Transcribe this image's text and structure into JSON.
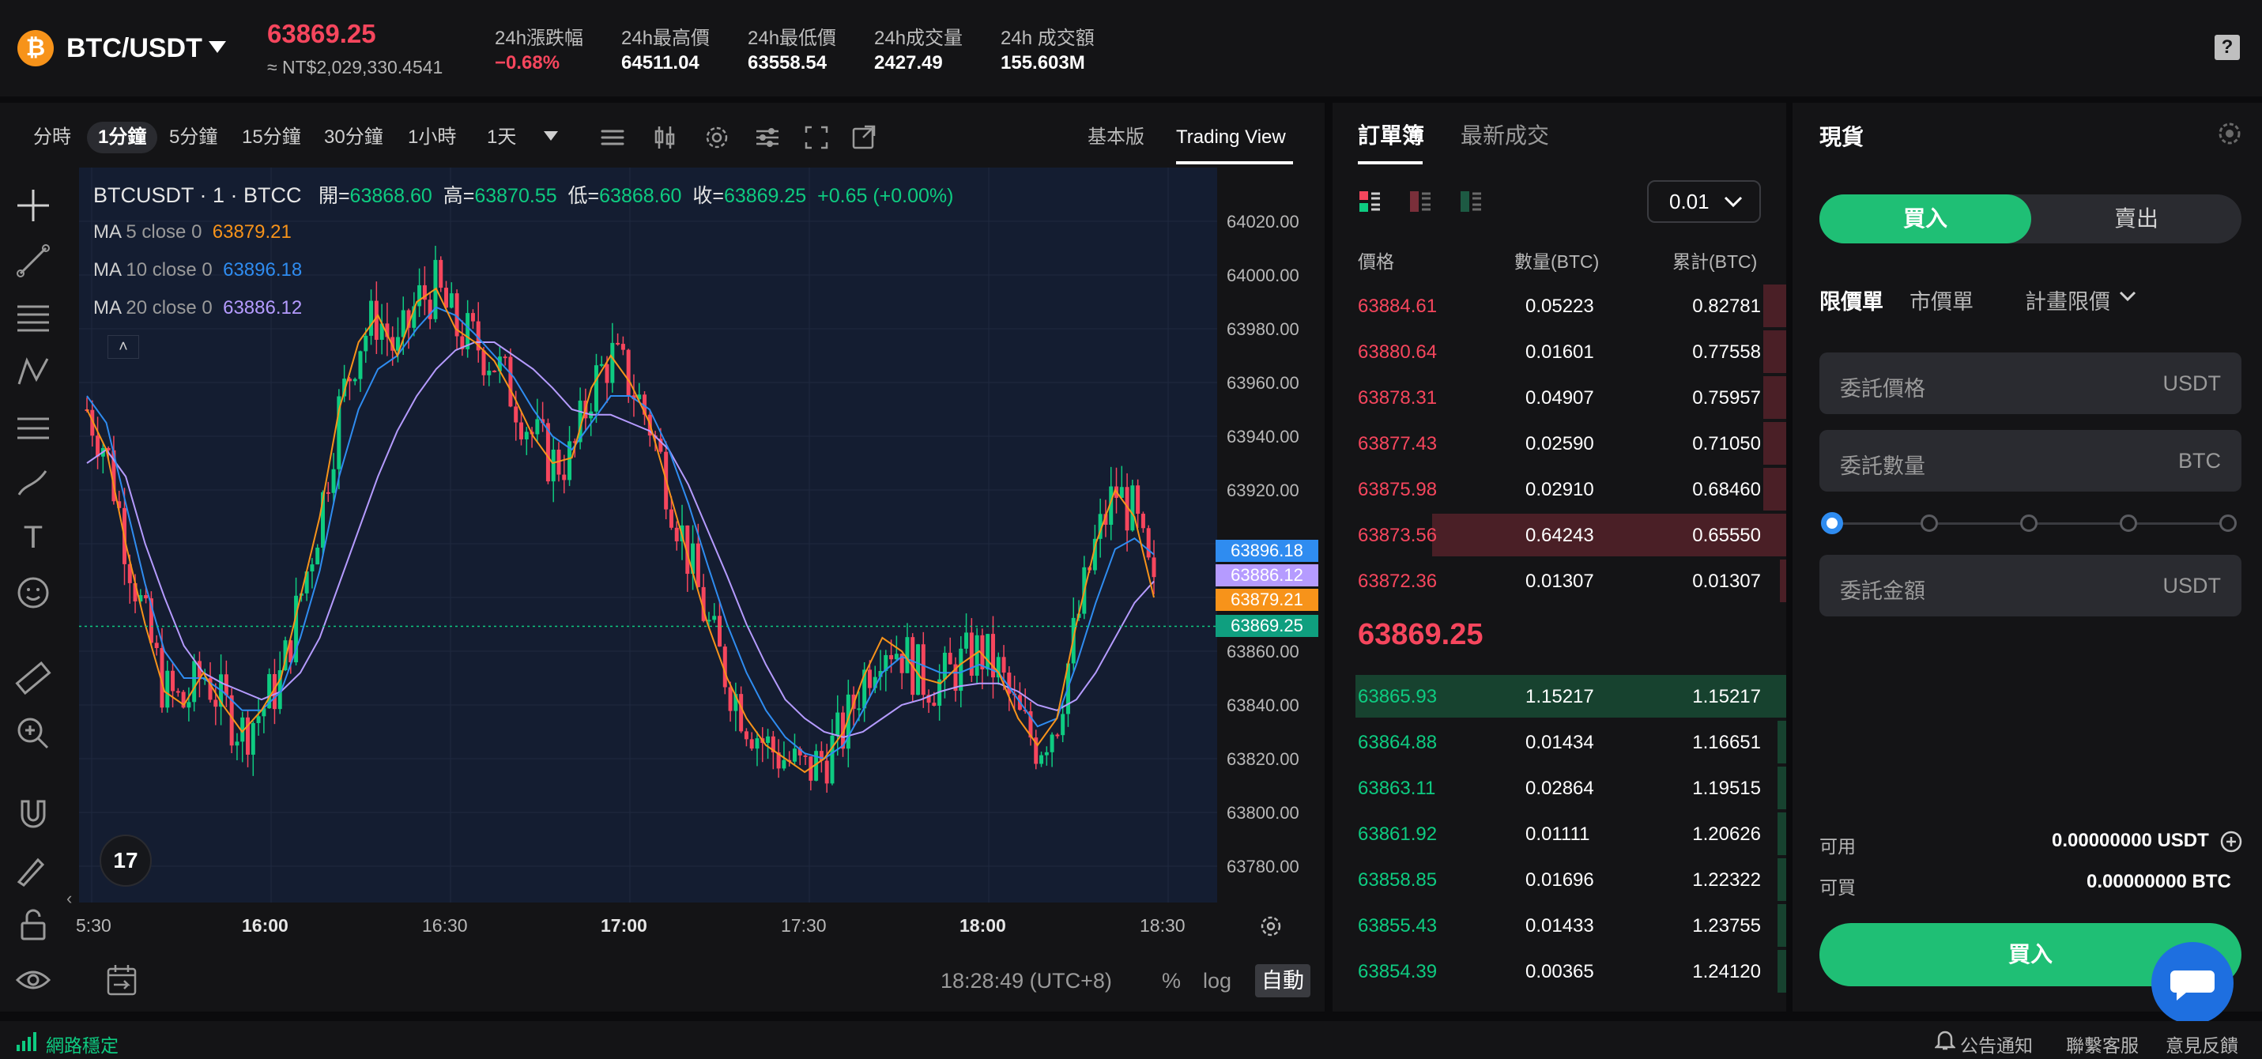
{
  "header": {
    "coin_symbol": "₿",
    "pair": "BTC/USDT",
    "last_price": "63869.25",
    "nt_price": "≈ NT$2,029,330.4541",
    "stats": [
      {
        "label": "24h漲跌幅",
        "value": "−0.68%"
      },
      {
        "label": "24h最高價",
        "value": "64511.04"
      },
      {
        "label": "24h最低價",
        "value": "63558.54"
      },
      {
        "label": "24h成交量",
        "value": "2427.49"
      },
      {
        "label": "24h 成交額",
        "value": "155.603M"
      }
    ],
    "help": "?"
  },
  "chart_toolbar": {
    "timeframes": [
      "分時",
      "1分鐘",
      "5分鐘",
      "15分鐘",
      "30分鐘",
      "1小時",
      "1天"
    ],
    "active_timeframe": "1分鐘",
    "versions": [
      "基本版",
      "Trading View"
    ],
    "active_version": "Trading View"
  },
  "chart": {
    "legend_main_symbol": "BTCUSDT · 1 · BTCC",
    "ohlc": [
      {
        "k": "開=",
        "v": "63868.60"
      },
      {
        "k": "高=",
        "v": "63870.55"
      },
      {
        "k": "低=",
        "v": "63868.60"
      },
      {
        "k": "收=",
        "v": "63869.25"
      }
    ],
    "change": "+0.65 (+0.00%)",
    "ma": [
      {
        "label": "MA",
        "params": "5 close 0",
        "value": "63879.21",
        "color": "#f7931a"
      },
      {
        "label": "MA",
        "params": "10 close 0",
        "value": "63896.18",
        "color": "#2f8cf0"
      },
      {
        "label": "MA",
        "params": "20 close 0",
        "value": "63886.12",
        "color": "#b59bff"
      }
    ],
    "price_tags": [
      {
        "value": "63896.18",
        "color": "#2f8cf0"
      },
      {
        "value": "63886.12",
        "color": "#b59bff"
      },
      {
        "value": "63879.21",
        "color": "#f7931a"
      },
      {
        "value": "63869.25",
        "color": "#0f9f7f"
      }
    ],
    "time": "18:28:49 (UTC+8)",
    "scale_options": [
      "%",
      "log",
      "自動"
    ],
    "active_scale": "自動",
    "tv_logo": "17"
  },
  "chart_data": {
    "type": "candlestick",
    "title": "",
    "y_ticks": [
      "64020.00",
      "64000.00",
      "63980.00",
      "63960.00",
      "63940.00",
      "63920.00",
      "63860.00",
      "63840.00",
      "63820.00",
      "63800.00",
      "63780.00"
    ],
    "ylim": [
      63770,
      64030
    ],
    "x_ticks": [
      "5:30",
      "16:00",
      "16:30",
      "17:00",
      "17:30",
      "18:00",
      "18:30"
    ],
    "bold_x_ticks": [
      "16:00",
      "17:00",
      "18:00"
    ],
    "ma5": [
      63950,
      63935,
      63900,
      63870,
      63845,
      63840,
      63852,
      63840,
      63830,
      63838,
      63850,
      63880,
      63910,
      63950,
      63975,
      63985,
      63970,
      63990,
      63995,
      63980,
      63975,
      63968,
      63955,
      63940,
      63930,
      63932,
      63958,
      63970,
      63960,
      63945,
      63920,
      63895,
      63870,
      63850,
      63835,
      63825,
      63820,
      63815,
      63820,
      63830,
      63850,
      63865,
      63860,
      63850,
      63848,
      63855,
      63860,
      63852,
      63835,
      63825,
      63835,
      63870,
      63900,
      63920,
      63910,
      63880
    ],
    "ma10": [
      63955,
      63945,
      63915,
      63885,
      63860,
      63850,
      63850,
      63845,
      63838,
      63838,
      63845,
      63865,
      63890,
      63925,
      63950,
      63965,
      63970,
      63980,
      63988,
      63985,
      63978,
      63970,
      63962,
      63950,
      63940,
      63935,
      63945,
      63955,
      63955,
      63950,
      63935,
      63915,
      63892,
      63870,
      63852,
      63838,
      63828,
      63822,
      63820,
      63825,
      63838,
      63852,
      63858,
      63855,
      63852,
      63852,
      63855,
      63852,
      63842,
      63832,
      63835,
      63855,
      63878,
      63898,
      63902,
      63896
    ],
    "ma20": [
      63930,
      63935,
      63925,
      63900,
      63880,
      63862,
      63852,
      63848,
      63845,
      63842,
      63845,
      63852,
      63865,
      63885,
      63905,
      63925,
      63942,
      63955,
      63965,
      63972,
      63975,
      63975,
      63970,
      63965,
      63958,
      63950,
      63948,
      63948,
      63945,
      63942,
      63935,
      63922,
      63905,
      63888,
      63870,
      63855,
      63842,
      63835,
      63830,
      63828,
      63830,
      63835,
      63840,
      63842,
      63845,
      63847,
      63848,
      63848,
      63845,
      63840,
      63838,
      63842,
      63852,
      63865,
      63878,
      63886
    ]
  },
  "orderbook": {
    "tabs": [
      "訂單簿",
      "最新成交"
    ],
    "active_tab": "訂單簿",
    "precision": "0.01",
    "headers": [
      "價格",
      "數量(BTC)",
      "累計(BTC)"
    ],
    "asks": [
      {
        "price": "63884.61",
        "qty": "0.05223",
        "total": "0.82781",
        "depth": 0.05
      },
      {
        "price": "63880.64",
        "qty": "0.01601",
        "total": "0.77558",
        "depth": 0.05
      },
      {
        "price": "63878.31",
        "qty": "0.04907",
        "total": "0.75957",
        "depth": 0.05
      },
      {
        "price": "63877.43",
        "qty": "0.02590",
        "total": "0.71050",
        "depth": 0.05
      },
      {
        "price": "63875.98",
        "qty": "0.02910",
        "total": "0.68460",
        "depth": 0.05
      },
      {
        "price": "63873.56",
        "qty": "0.64243",
        "total": "0.65550",
        "depth": 0.78
      },
      {
        "price": "63872.36",
        "qty": "0.01307",
        "total": "0.01307",
        "depth": 0.0
      }
    ],
    "mid_price": "63869.25",
    "bids": [
      {
        "price": "63865.93",
        "qty": "1.15217",
        "total": "1.15217",
        "depth": 0.95
      },
      {
        "price": "63864.88",
        "qty": "0.01434",
        "total": "1.16651",
        "depth": 0.02
      },
      {
        "price": "63863.11",
        "qty": "0.02864",
        "total": "1.19515",
        "depth": 0.02
      },
      {
        "price": "63861.92",
        "qty": "0.01111",
        "total": "1.20626",
        "depth": 0.02
      },
      {
        "price": "63858.85",
        "qty": "0.01696",
        "total": "1.22322",
        "depth": 0.02
      },
      {
        "price": "63855.43",
        "qty": "0.01433",
        "total": "1.23755",
        "depth": 0.02
      },
      {
        "price": "63854.39",
        "qty": "0.00365",
        "total": "1.24120",
        "depth": 0.02
      }
    ]
  },
  "trade": {
    "title": "現貨",
    "buy_tab": "買入",
    "sell_tab": "賣出",
    "order_types": [
      "限價單",
      "市價單",
      "計畫限價"
    ],
    "active_order_type": "限價單",
    "price_label": "委託價格",
    "price_unit": "USDT",
    "qty_label": "委託數量",
    "qty_unit": "BTC",
    "amount_label": "委託金額",
    "amount_unit": "USDT",
    "slider_value": 0,
    "available_label": "可用",
    "available_value": "0.00000000 USDT",
    "buyable_label": "可買",
    "buyable_value": "0.00000000 BTC",
    "buy_button": "買入"
  },
  "statusbar": {
    "network": "網路穩定",
    "links": [
      "公告通知",
      "聯繫客服",
      "意見反饋"
    ]
  },
  "colors": {
    "up": "#0ecb81",
    "down": "#f6465d",
    "accent_green": "#1fbf75"
  }
}
